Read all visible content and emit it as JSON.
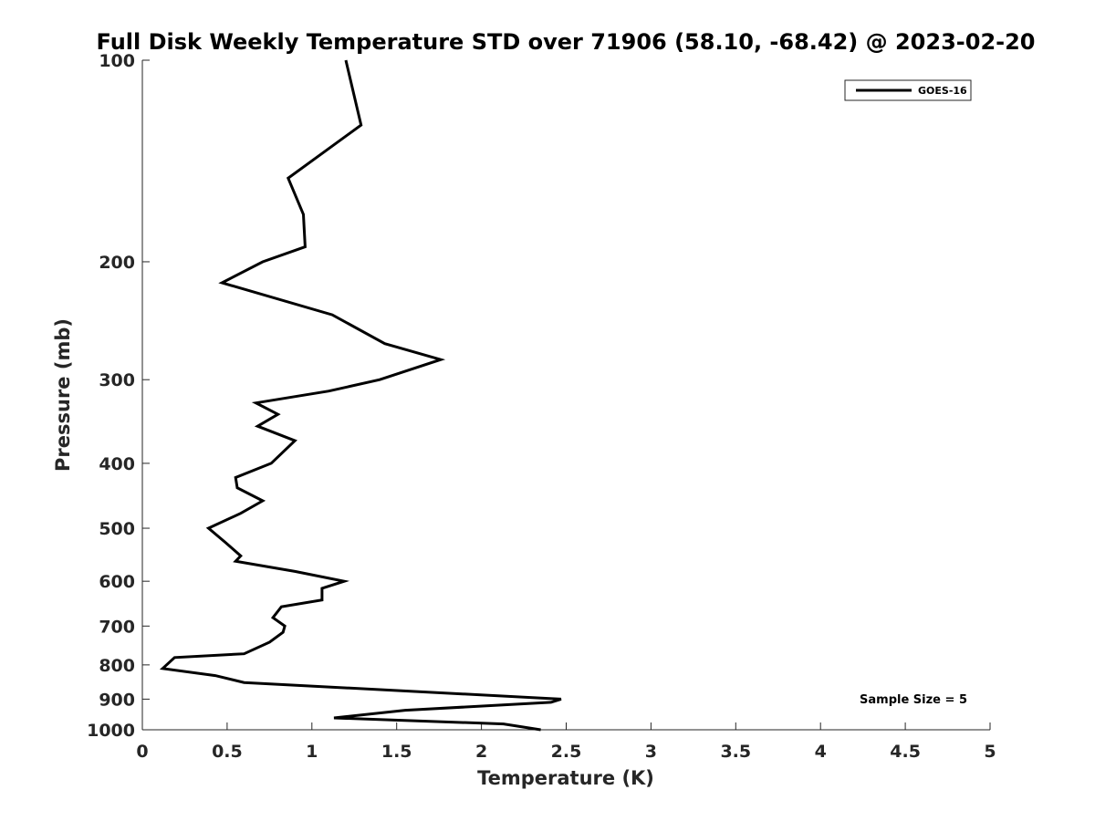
{
  "chart_data": {
    "type": "line",
    "title": "Full Disk Weekly Temperature STD over 71906 (58.10, -68.42) @ 2023-02-20",
    "xlabel": "Temperature (K)",
    "ylabel": "Pressure (mb)",
    "xlim": [
      0,
      5
    ],
    "ylim": [
      100,
      1000
    ],
    "y_scale": "log",
    "y_reversed": true,
    "x_ticks": [
      0,
      0.5,
      1,
      1.5,
      2,
      2.5,
      3,
      3.5,
      4,
      4.5,
      5
    ],
    "x_tick_labels": [
      "0",
      "0.5",
      "1",
      "1.5",
      "2",
      "2.5",
      "3",
      "3.5",
      "4",
      "4.5",
      "5"
    ],
    "y_ticks": [
      100,
      200,
      300,
      400,
      500,
      600,
      700,
      800,
      900,
      1000
    ],
    "y_tick_labels": [
      "100",
      "200",
      "300",
      "400",
      "500",
      "600",
      "700",
      "800",
      "900",
      "1000"
    ],
    "grid": false,
    "legend_position": "top-right",
    "annotation": "Sample Size = 5",
    "series": [
      {
        "name": "GOES-16",
        "color": "#000000",
        "points": [
          [
            1.2,
            100
          ],
          [
            1.29,
            125
          ],
          [
            0.86,
            150
          ],
          [
            0.95,
            170
          ],
          [
            0.96,
            190
          ],
          [
            0.71,
            200
          ],
          [
            0.47,
            215
          ],
          [
            1.12,
            240
          ],
          [
            1.43,
            265
          ],
          [
            1.76,
            280
          ],
          [
            1.4,
            300
          ],
          [
            1.1,
            312
          ],
          [
            0.67,
            325
          ],
          [
            0.8,
            338
          ],
          [
            0.68,
            352
          ],
          [
            0.9,
            370
          ],
          [
            0.76,
            400
          ],
          [
            0.55,
            420
          ],
          [
            0.56,
            435
          ],
          [
            0.71,
            455
          ],
          [
            0.58,
            475
          ],
          [
            0.39,
            500
          ],
          [
            0.49,
            525
          ],
          [
            0.58,
            550
          ],
          [
            0.55,
            560
          ],
          [
            0.9,
            580
          ],
          [
            1.19,
            600
          ],
          [
            1.06,
            615
          ],
          [
            1.06,
            640
          ],
          [
            0.82,
            655
          ],
          [
            0.77,
            680
          ],
          [
            0.84,
            700
          ],
          [
            0.83,
            715
          ],
          [
            0.75,
            740
          ],
          [
            0.6,
            770
          ],
          [
            0.19,
            780
          ],
          [
            0.12,
            810
          ],
          [
            0.43,
            830
          ],
          [
            0.6,
            850
          ],
          [
            2.47,
            900
          ],
          [
            2.41,
            910
          ],
          [
            1.55,
            935
          ],
          [
            1.13,
            960
          ],
          [
            2.13,
            980
          ],
          [
            2.35,
            1000
          ]
        ]
      }
    ]
  }
}
